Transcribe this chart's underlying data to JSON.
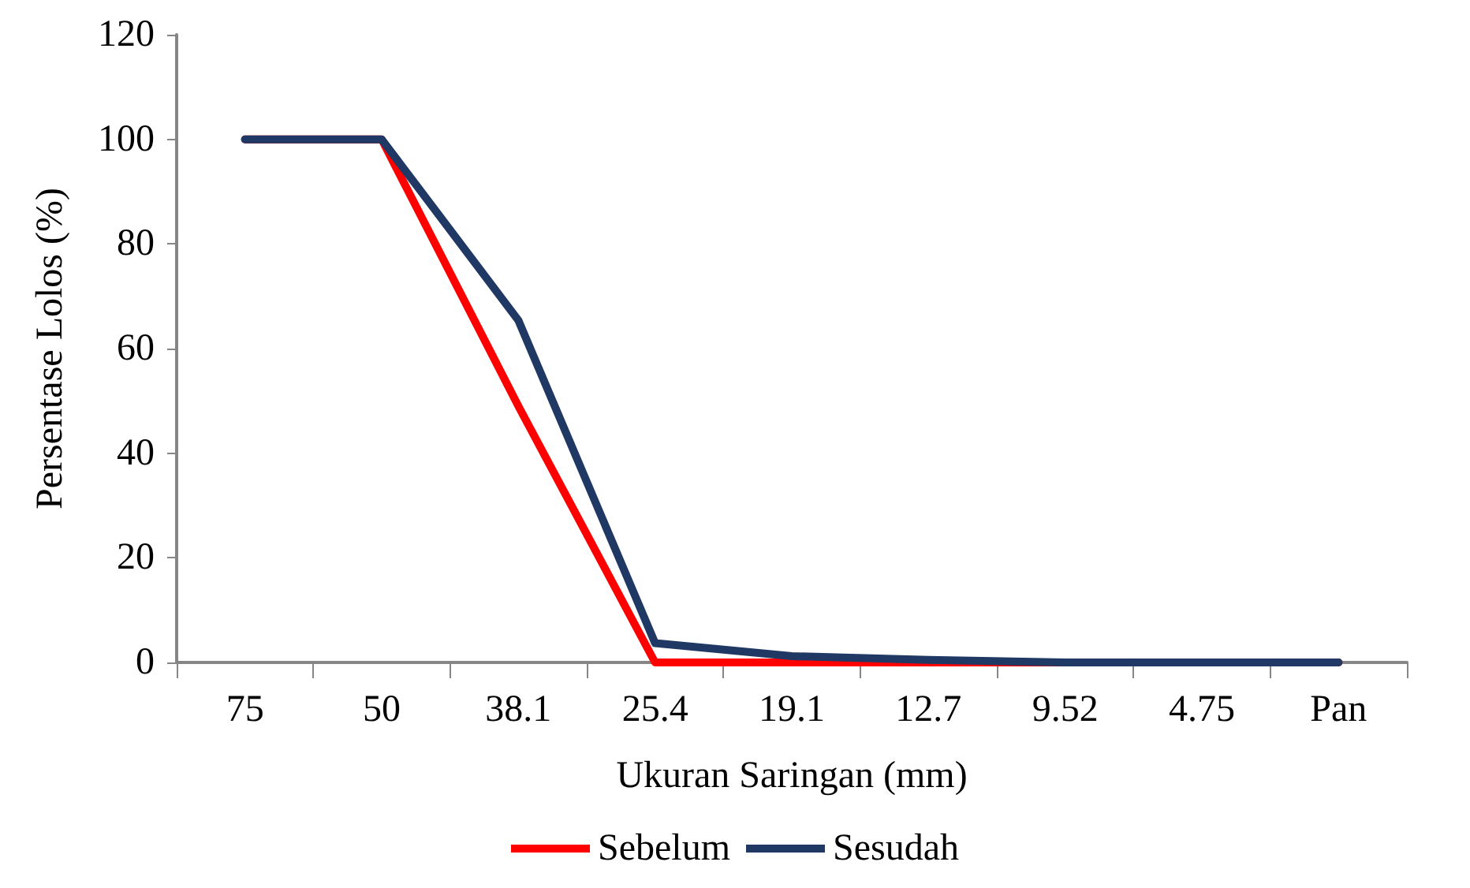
{
  "chart_data": {
    "type": "line",
    "xlabel": "Ukuran Saringan (mm)",
    "ylabel": "Persentase Lolos (%)",
    "categories": [
      "75",
      "50",
      "38.1",
      "25.4",
      "19.1",
      "12.7",
      "9.52",
      "4.75",
      "Pan"
    ],
    "series": [
      {
        "name": "Sebelum",
        "color": "#ff0000",
        "values": [
          100,
          100,
          49,
          0,
          0,
          0,
          0,
          0,
          0
        ]
      },
      {
        "name": "Sesudah",
        "color": "#1f3864",
        "values": [
          100,
          100,
          65.4,
          3.7,
          1.2,
          0.5,
          0,
          0,
          0
        ]
      }
    ],
    "ylim": [
      0,
      120
    ],
    "yticks": [
      0,
      20,
      40,
      60,
      80,
      100,
      120
    ],
    "grid": false,
    "legend": "bottom",
    "marker": "none",
    "line_style": "solid"
  }
}
